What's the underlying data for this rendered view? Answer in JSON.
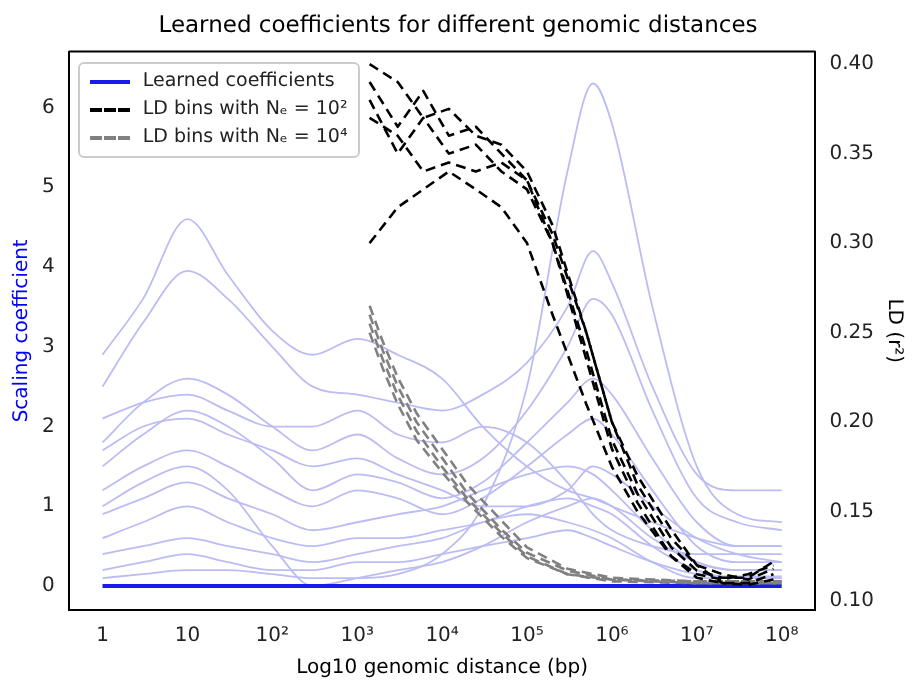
{
  "chart_data": {
    "type": "line",
    "title": "Learned coefficients for different genomic distances",
    "xlabel": "Log10 genomic distance (bp)",
    "ylabel": "Scaling coefficient",
    "y2label": "LD (r²)",
    "log": "x",
    "grid": false,
    "legend": "top left",
    "marker": "none",
    "xlim": [
      0.4,
      250000000
    ],
    "xticks": [
      1,
      10,
      {
        "value": 100,
        "label": "10²"
      },
      {
        "value": 1000,
        "label": "10³"
      },
      {
        "value": 10000,
        "label": "10⁴"
      },
      {
        "value": 100000,
        "label": "10⁵"
      },
      {
        "value": 1000000,
        "label": "10⁶"
      },
      {
        "value": 10000000,
        "label": "10⁷"
      },
      {
        "value": 100000000,
        "label": "10⁸"
      }
    ],
    "ylim": [
      -0.3,
      6.7
    ],
    "yticks": [
      0,
      1,
      2,
      3,
      4,
      5,
      6
    ],
    "y2lim": [
      0.095,
      0.407
    ],
    "y2ticks": [
      {
        "value": 0.1,
        "label": "0.10"
      },
      {
        "value": 0.15,
        "label": "0.15"
      },
      {
        "value": 0.2,
        "label": "0.20"
      },
      {
        "value": 0.25,
        "label": "0.25"
      },
      {
        "value": 0.3,
        "label": "0.30"
      },
      {
        "value": 0.35,
        "label": "0.35"
      },
      {
        "value": 0.4,
        "label": "0.40"
      }
    ],
    "x": [
      1,
      3,
      10,
      30,
      100,
      300,
      1000,
      3000,
      10000,
      30000,
      100000,
      300000,
      600000,
      1000000,
      3000000,
      10000000,
      30000000,
      100000000
    ],
    "series": [
      {
        "name": "Learned coefficients",
        "color": "#1a1aee",
        "line_style": "solid",
        "values": [
          0,
          0,
          0,
          0,
          0,
          0,
          0,
          0,
          0,
          0,
          0,
          0,
          0,
          0,
          0,
          0,
          0,
          0
        ]
      },
      {
        "color": "#bcbcf5",
        "line_style": "solid",
        "values": [
          0.1,
          0.15,
          0.2,
          0.2,
          0.15,
          0.1,
          0.1,
          0.15,
          0.4,
          1.0,
          2.5,
          5.2,
          6.3,
          5.8,
          3.5,
          1.5,
          0.9,
          0.8
        ]
      },
      {
        "color": "#bcbcf5",
        "line_style": "solid",
        "values": [
          2.9,
          3.6,
          4.6,
          3.9,
          3.2,
          2.9,
          3.1,
          2.9,
          2.6,
          2.0,
          1.5,
          1.2,
          1.1,
          1.0,
          0.8,
          0.6,
          0.5,
          0.5
        ]
      },
      {
        "color": "#bcbcf5",
        "line_style": "solid",
        "values": [
          2.5,
          3.3,
          3.95,
          3.6,
          3.0,
          2.5,
          2.4,
          2.3,
          2.2,
          2.4,
          2.8,
          3.5,
          4.2,
          3.8,
          2.5,
          1.4,
          1.2,
          1.2
        ]
      },
      {
        "color": "#bcbcf5",
        "line_style": "solid",
        "values": [
          1.8,
          2.3,
          2.6,
          2.4,
          2.0,
          1.7,
          1.9,
          1.6,
          1.4,
          1.6,
          2.2,
          3.0,
          3.6,
          3.4,
          2.2,
          1.1,
          0.8,
          0.7
        ]
      },
      {
        "color": "#bcbcf5",
        "line_style": "solid",
        "values": [
          1.5,
          1.9,
          2.2,
          2.0,
          1.6,
          1.2,
          1.4,
          1.3,
          1.1,
          1.3,
          1.8,
          2.3,
          2.6,
          2.4,
          1.6,
          0.8,
          0.5,
          0.5
        ]
      },
      {
        "color": "#bcbcf5",
        "line_style": "solid",
        "values": [
          1.7,
          2.0,
          2.1,
          1.9,
          1.7,
          1.5,
          1.6,
          1.4,
          1.2,
          1.0,
          1.0,
          1.2,
          1.5,
          1.4,
          1.0,
          0.6,
          0.4,
          0.3
        ]
      },
      {
        "color": "#bcbcf5",
        "line_style": "solid",
        "values": [
          1.2,
          1.5,
          1.7,
          1.5,
          1.2,
          1.0,
          1.2,
          1.1,
          0.9,
          1.1,
          1.5,
          1.9,
          2.1,
          1.9,
          1.2,
          0.5,
          0.3,
          0.3
        ]
      },
      {
        "color": "#bcbcf5",
        "line_style": "solid",
        "values": [
          0.9,
          1.1,
          1.3,
          1.1,
          0.9,
          0.7,
          0.8,
          0.9,
          1.0,
          1.2,
          1.4,
          1.5,
          1.4,
          1.2,
          0.7,
          0.3,
          0.2,
          0.2
        ]
      },
      {
        "color": "#bcbcf5",
        "line_style": "solid",
        "values": [
          0.6,
          0.8,
          1.0,
          0.8,
          0.6,
          0.5,
          0.6,
          0.6,
          0.7,
          0.8,
          1.0,
          1.1,
          1.0,
          0.9,
          0.5,
          0.2,
          0.1,
          0.1
        ]
      },
      {
        "color": "#bcbcf5",
        "line_style": "solid",
        "values": [
          0.4,
          0.5,
          0.6,
          0.5,
          0.4,
          0.3,
          0.4,
          0.5,
          0.6,
          0.8,
          0.9,
          0.8,
          0.7,
          0.6,
          0.3,
          0.1,
          0.1,
          0.1
        ]
      },
      {
        "color": "#bcbcf5",
        "line_style": "solid",
        "values": [
          0.2,
          0.3,
          0.4,
          0.3,
          0.2,
          0.2,
          0.3,
          0.3,
          0.4,
          0.5,
          0.6,
          0.7,
          0.6,
          0.5,
          0.3,
          0.15,
          0.12,
          0.12
        ]
      },
      {
        "color": "#bcbcf5",
        "line_style": "solid",
        "values": [
          1.0,
          1.3,
          1.5,
          1.2,
          0.5,
          0.0,
          0.1,
          0.2,
          0.3,
          0.5,
          0.8,
          1.0,
          1.1,
          1.0,
          0.6,
          0.3,
          0.2,
          0.2
        ]
      },
      {
        "color": "#bcbcf5",
        "line_style": "solid",
        "values": [
          2.1,
          2.3,
          2.4,
          2.2,
          2.0,
          2.0,
          2.2,
          1.9,
          1.8,
          2.0,
          1.8,
          1.3,
          0.9,
          0.7,
          0.5,
          0.4,
          0.4,
          0.4
        ]
      },
      {
        "name": "LD bins with Nₑ = 10²",
        "color": "#000000",
        "line_style": "dashed",
        "axis": "y2",
        "x": [
          1400,
          3000,
          6000,
          12000,
          25000,
          50000,
          100000,
          200000,
          500000,
          1000000,
          2000000,
          5000000,
          10000000,
          20000000,
          40000000,
          80000000
        ],
        "values": [
          0.4,
          0.39,
          0.37,
          0.375,
          0.36,
          0.355,
          0.34,
          0.31,
          0.25,
          0.2,
          0.165,
          0.135,
          0.12,
          0.115,
          0.112,
          0.118
        ]
      },
      {
        "color": "#000000",
        "line_style": "dashed",
        "axis": "y2",
        "x": [
          1400,
          3000,
          6000,
          12000,
          25000,
          50000,
          100000,
          200000,
          500000,
          1000000,
          2000000,
          5000000,
          10000000,
          20000000,
          40000000,
          80000000
        ],
        "values": [
          0.39,
          0.365,
          0.385,
          0.36,
          0.365,
          0.35,
          0.335,
          0.3,
          0.24,
          0.19,
          0.16,
          0.13,
          0.117,
          0.113,
          0.113,
          0.122
        ]
      },
      {
        "color": "#000000",
        "line_style": "dashed",
        "axis": "y2",
        "x": [
          1400,
          3000,
          6000,
          12000,
          25000,
          50000,
          100000,
          200000,
          500000,
          1000000,
          2000000,
          5000000,
          10000000,
          20000000,
          40000000,
          80000000
        ],
        "values": [
          0.38,
          0.35,
          0.37,
          0.35,
          0.355,
          0.34,
          0.33,
          0.3,
          0.235,
          0.185,
          0.155,
          0.125,
          0.115,
          0.112,
          0.115,
          0.12
        ]
      },
      {
        "color": "#000000",
        "line_style": "dashed",
        "axis": "y2",
        "x": [
          1400,
          3000,
          6000,
          12000,
          25000,
          50000,
          100000,
          200000,
          500000,
          1000000,
          2000000,
          5000000,
          10000000,
          20000000,
          40000000,
          80000000
        ],
        "values": [
          0.37,
          0.36,
          0.34,
          0.345,
          0.34,
          0.345,
          0.335,
          0.305,
          0.25,
          0.2,
          0.17,
          0.14,
          0.12,
          0.11,
          0.109,
          0.112
        ]
      },
      {
        "color": "#000000",
        "line_style": "dashed",
        "axis": "y2",
        "x": [
          1400,
          3000,
          6000,
          12000,
          25000,
          50000,
          100000,
          200000,
          500000,
          1000000,
          2000000,
          5000000,
          10000000,
          20000000,
          40000000,
          80000000
        ],
        "values": [
          0.3,
          0.32,
          0.33,
          0.34,
          0.33,
          0.32,
          0.3,
          0.26,
          0.21,
          0.175,
          0.15,
          0.125,
          0.113,
          0.11,
          0.11,
          0.115
        ]
      },
      {
        "name": "LD bins with Nₑ = 10⁴",
        "color": "#808080",
        "line_style": "dashed",
        "axis": "y2",
        "x": [
          1400,
          2000,
          3000,
          5000,
          10000,
          20000,
          50000,
          100000,
          300000,
          1000000,
          10000000,
          100000000
        ],
        "values": [
          0.265,
          0.245,
          0.225,
          0.205,
          0.185,
          0.165,
          0.145,
          0.13,
          0.118,
          0.113,
          0.111,
          0.111
        ]
      },
      {
        "color": "#808080",
        "line_style": "dashed",
        "axis": "y2",
        "x": [
          1400,
          2000,
          3000,
          5000,
          10000,
          20000,
          50000,
          100000,
          300000,
          1000000,
          10000000,
          100000000
        ],
        "values": [
          0.26,
          0.24,
          0.22,
          0.2,
          0.18,
          0.16,
          0.14,
          0.127,
          0.117,
          0.112,
          0.111,
          0.111
        ]
      },
      {
        "color": "#808080",
        "line_style": "dashed",
        "axis": "y2",
        "x": [
          1400,
          2000,
          3000,
          5000,
          10000,
          20000,
          50000,
          100000,
          300000,
          1000000,
          10000000,
          100000000
        ],
        "values": [
          0.255,
          0.235,
          0.215,
          0.195,
          0.175,
          0.157,
          0.138,
          0.125,
          0.115,
          0.112,
          0.11,
          0.11
        ]
      },
      {
        "color": "#808080",
        "line_style": "dashed",
        "axis": "y2",
        "x": [
          1400,
          2000,
          3000,
          5000,
          10000,
          20000,
          50000,
          100000,
          300000,
          1000000,
          10000000,
          100000000
        ],
        "values": [
          0.25,
          0.23,
          0.21,
          0.19,
          0.172,
          0.155,
          0.136,
          0.124,
          0.115,
          0.111,
          0.11,
          0.11
        ]
      }
    ]
  }
}
